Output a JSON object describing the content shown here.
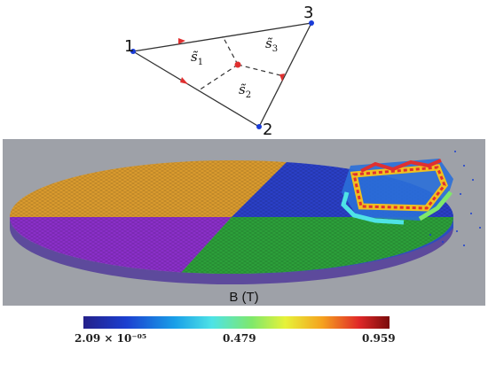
{
  "triangle": {
    "nodes": [
      "1",
      "2",
      "3"
    ],
    "regions": [
      {
        "base": "s̃",
        "sub": "1"
      },
      {
        "base": "s̃",
        "sub": "2"
      },
      {
        "base": "s̃",
        "sub": "3"
      }
    ]
  },
  "simulation": {
    "field_label": "B (T)",
    "colorbar": {
      "min": "2.09 × 10⁻⁰⁵",
      "mid": "0.479",
      "max": "0.959"
    },
    "sector_colors": {
      "orange": "#d99a2e",
      "blue": "#2a3fc6",
      "purple": "#8a2fc8",
      "green": "#2c9f3a"
    }
  }
}
